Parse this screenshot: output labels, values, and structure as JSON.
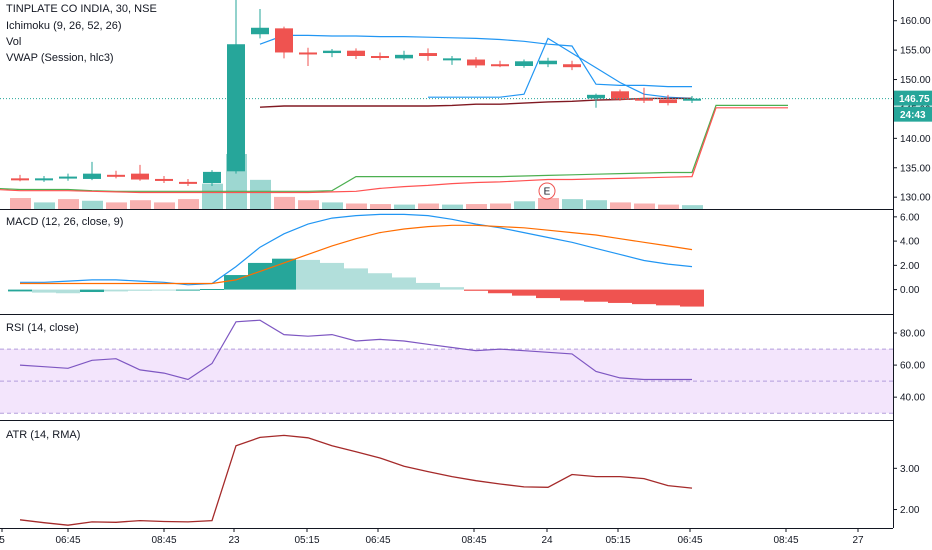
{
  "header": {
    "title": "TINPLATE CO INDIA, 30, NSE",
    "indicators": [
      "Ichimoku (9, 26, 52, 26)",
      "Vol",
      "VWAP (Session, hlc3)"
    ]
  },
  "panes": {
    "macd_label": "MACD (12, 26, close, 9)",
    "rsi_label": "RSI (14, close)",
    "atr_label": "ATR (14, RMA)"
  },
  "price_tag": {
    "last_price": "146.75",
    "countdown": "24:43",
    "color": "#26a69a"
  },
  "earnings_marker": "E",
  "colors": {
    "up": "#26a69a",
    "down": "#ef5350",
    "ichimoku_conversion": "#2196f3",
    "ichimoku_base": "#801922",
    "span_a": "#4caf50",
    "span_b": "#ff5252",
    "vwap": "#2196f3",
    "macd_line": "#2196f3",
    "signal_line": "#ff6d00",
    "rsi_line": "#7e57c2",
    "rsi_band": "#f3e5fc",
    "atr_line": "#a52a2a"
  },
  "chart_data": [
    {
      "type": "candlestick",
      "pane": "price",
      "ylim": [
        128.5,
        162.5
      ],
      "yticks": [
        "160.00",
        "155.00",
        "150.00",
        "145.00",
        "140.00",
        "135.00",
        "130.00"
      ],
      "ytick_values": [
        160,
        155,
        150,
        145,
        140,
        135,
        130
      ],
      "xticks": [
        "5",
        "06:45",
        "08:45",
        "23",
        "05:15",
        "06:45",
        "08:45",
        "24",
        "05:15",
        "06:45",
        "08:45",
        "27"
      ],
      "candles": [
        {
          "o": 133.2,
          "h": 133.8,
          "l": 132.7,
          "c": 133.0
        },
        {
          "o": 133.0,
          "h": 133.6,
          "l": 132.6,
          "c": 133.2
        },
        {
          "o": 133.2,
          "h": 134.0,
          "l": 132.8,
          "c": 133.5
        },
        {
          "o": 133.1,
          "h": 136.0,
          "l": 132.9,
          "c": 134.0
        },
        {
          "o": 133.8,
          "h": 134.5,
          "l": 133.2,
          "c": 133.6
        },
        {
          "o": 134.0,
          "h": 135.5,
          "l": 132.8,
          "c": 133.0
        },
        {
          "o": 133.1,
          "h": 133.6,
          "l": 132.4,
          "c": 132.8
        },
        {
          "o": 132.6,
          "h": 133.1,
          "l": 131.9,
          "c": 132.3
        },
        {
          "o": 132.4,
          "h": 134.6,
          "l": 131.9,
          "c": 134.3
        },
        {
          "o": 134.4,
          "h": 164.0,
          "l": 134.0,
          "c": 156.0
        },
        {
          "o": 157.7,
          "h": 162.0,
          "l": 157.0,
          "c": 158.8
        },
        {
          "o": 158.7,
          "h": 159.0,
          "l": 153.6,
          "c": 154.6
        },
        {
          "o": 154.6,
          "h": 155.4,
          "l": 152.3,
          "c": 154.3
        },
        {
          "o": 154.5,
          "h": 155.2,
          "l": 153.8,
          "c": 154.9
        },
        {
          "o": 154.9,
          "h": 155.3,
          "l": 153.5,
          "c": 154.0
        },
        {
          "o": 154.0,
          "h": 154.6,
          "l": 153.3,
          "c": 153.8
        },
        {
          "o": 153.6,
          "h": 154.9,
          "l": 153.3,
          "c": 154.2
        },
        {
          "o": 154.5,
          "h": 155.3,
          "l": 153.2,
          "c": 154.0
        },
        {
          "o": 153.5,
          "h": 154.0,
          "l": 152.5,
          "c": 153.6
        },
        {
          "o": 153.4,
          "h": 153.8,
          "l": 152.0,
          "c": 152.4
        },
        {
          "o": 152.6,
          "h": 153.2,
          "l": 152.1,
          "c": 152.3
        },
        {
          "o": 152.3,
          "h": 153.4,
          "l": 152.0,
          "c": 153.1
        },
        {
          "o": 152.6,
          "h": 153.7,
          "l": 152.1,
          "c": 153.2
        },
        {
          "o": 152.6,
          "h": 153.2,
          "l": 151.6,
          "c": 152.1
        },
        {
          "o": 146.8,
          "h": 147.6,
          "l": 145.2,
          "c": 147.4
        },
        {
          "o": 148.0,
          "h": 148.3,
          "l": 146.4,
          "c": 146.6
        },
        {
          "o": 146.8,
          "h": 148.6,
          "l": 146.0,
          "c": 146.4
        },
        {
          "o": 146.6,
          "h": 147.4,
          "l": 145.6,
          "c": 146.0
        },
        {
          "o": 146.4,
          "h": 147.2,
          "l": 146.0,
          "c": 146.75
        }
      ],
      "volume": [
        {
          "v": 0.2,
          "up": false
        },
        {
          "v": 0.12,
          "up": true
        },
        {
          "v": 0.18,
          "up": false
        },
        {
          "v": 0.15,
          "up": true
        },
        {
          "v": 0.12,
          "up": false
        },
        {
          "v": 0.16,
          "up": false
        },
        {
          "v": 0.12,
          "up": false
        },
        {
          "v": 0.18,
          "up": false
        },
        {
          "v": 0.46,
          "up": true
        },
        {
          "v": 1.0,
          "up": true
        },
        {
          "v": 0.53,
          "up": true
        },
        {
          "v": 0.22,
          "up": false
        },
        {
          "v": 0.16,
          "up": false
        },
        {
          "v": 0.12,
          "up": true
        },
        {
          "v": 0.1,
          "up": false
        },
        {
          "v": 0.09,
          "up": false
        },
        {
          "v": 0.08,
          "up": true
        },
        {
          "v": 0.1,
          "up": false
        },
        {
          "v": 0.08,
          "up": true
        },
        {
          "v": 0.09,
          "up": false
        },
        {
          "v": 0.1,
          "up": false
        },
        {
          "v": 0.14,
          "up": true
        },
        {
          "v": 0.2,
          "up": false
        },
        {
          "v": 0.18,
          "up": true
        },
        {
          "v": 0.16,
          "up": true
        },
        {
          "v": 0.12,
          "up": false
        },
        {
          "v": 0.1,
          "up": false
        },
        {
          "v": 0.08,
          "up": false
        },
        {
          "v": 0.07,
          "up": true
        }
      ],
      "series": [
        {
          "name": "VWAP",
          "values": [
            null,
            null,
            null,
            null,
            null,
            null,
            null,
            null,
            null,
            null,
            156,
            157.5,
            157.5,
            157.4,
            157.4,
            157.3,
            157.3,
            157.2,
            157.1,
            157.0,
            156.8,
            156.5,
            156.0,
            155.7,
            149.2,
            149.0,
            149.0,
            148.8,
            148.8
          ]
        },
        {
          "name": "Conversion Line",
          "values": [
            null,
            null,
            null,
            null,
            null,
            null,
            null,
            null,
            null,
            null,
            null,
            null,
            null,
            null,
            null,
            null,
            null,
            147.0,
            147.0,
            147.0,
            147.0,
            147.5,
            157.0,
            154.5,
            152.0,
            149.5,
            147.5,
            147.0,
            146.8
          ]
        },
        {
          "name": "Base Line",
          "values": [
            null,
            null,
            null,
            null,
            null,
            null,
            null,
            null,
            null,
            null,
            145.3,
            145.5,
            145.5,
            145.5,
            145.5,
            145.5,
            145.5,
            145.5,
            145.6,
            145.8,
            145.8,
            146.0,
            146.2,
            146.3,
            146.5,
            146.6,
            146.8,
            146.8,
            146.8
          ]
        },
        {
          "name": "Leading Span A",
          "values": [
            131.5,
            131.5,
            131.5,
            131.5,
            131.5,
            131.3,
            131.3,
            131.3,
            131.1,
            131.0,
            131.0,
            131.0,
            131.0,
            131.0,
            131.0,
            131.0,
            131.0,
            131.0,
            131.1,
            133.5,
            133.5,
            133.5,
            133.5,
            133.5,
            133.5,
            133.5,
            133.6,
            133.7,
            133.8,
            133.9,
            134.0,
            134.1,
            134.2,
            134.2,
            145.6,
            145.6,
            145.6,
            145.6
          ]
        },
        {
          "name": "Leading Span B",
          "values": [
            131.3,
            131.3,
            131.3,
            131.3,
            131.3,
            131.1,
            131.1,
            131.1,
            131.0,
            130.9,
            130.8,
            130.8,
            130.8,
            130.8,
            130.8,
            130.8,
            130.8,
            130.8,
            130.9,
            131.0,
            131.5,
            131.8,
            132.0,
            132.3,
            132.5,
            132.6,
            132.8,
            133.0,
            133.0,
            133.1,
            133.2,
            133.3,
            133.4,
            133.5,
            145.2,
            145.2,
            145.2,
            145.2
          ]
        }
      ]
    },
    {
      "type": "histogram",
      "pane": "MACD (12, 26, close, 9)",
      "ylim": [
        -1.6,
        6.4
      ],
      "yticks": [
        "6.00",
        "4.00",
        "2.00",
        "0.00"
      ],
      "ytick_values": [
        6,
        4,
        2,
        0
      ],
      "histogram": [
        -0.15,
        -0.25,
        -0.3,
        -0.2,
        -0.15,
        -0.1,
        -0.05,
        0.0,
        0.05,
        1.2,
        2.2,
        2.55,
        2.45,
        2.2,
        1.75,
        1.35,
        1.0,
        0.55,
        0.2,
        -0.1,
        -0.3,
        -0.5,
        -0.7,
        -0.9,
        -1.0,
        -1.1,
        -1.2,
        -1.3,
        -1.4
      ],
      "histogram_colors": [
        "#26a69a",
        "#b2dfdb",
        "#b2dfdb",
        "#26a69a",
        "#b2dfdb",
        "#b2dfdb",
        "#b2dfdb",
        "#26a69a",
        "#26a69a",
        "#26a69a",
        "#26a69a",
        "#26a69a",
        "#b2dfdb",
        "#b2dfdb",
        "#b2dfdb",
        "#b2dfdb",
        "#b2dfdb",
        "#b2dfdb",
        "#b2dfdb",
        "#ef5350",
        "#ef5350",
        "#ef5350",
        "#ef5350",
        "#ef5350",
        "#ef5350",
        "#ef5350",
        "#ef5350",
        "#ef5350",
        "#ef5350"
      ],
      "series": [
        {
          "name": "MACD",
          "values": [
            0.6,
            0.6,
            0.7,
            0.8,
            0.8,
            0.7,
            0.6,
            0.4,
            0.5,
            1.9,
            3.5,
            4.6,
            5.4,
            5.9,
            6.1,
            6.2,
            6.2,
            6.1,
            5.8,
            5.4,
            5.1,
            4.7,
            4.3,
            3.9,
            3.4,
            2.9,
            2.4,
            2.1,
            1.9
          ]
        },
        {
          "name": "Signal",
          "values": [
            0.5,
            0.5,
            0.5,
            0.5,
            0.5,
            0.5,
            0.5,
            0.5,
            0.5,
            0.8,
            1.5,
            2.2,
            2.9,
            3.6,
            4.2,
            4.7,
            5.0,
            5.2,
            5.3,
            5.3,
            5.2,
            5.1,
            4.9,
            4.7,
            4.5,
            4.2,
            3.9,
            3.6,
            3.3
          ]
        }
      ]
    },
    {
      "type": "line",
      "pane": "RSI (14, close)",
      "ylim": [
        27,
        90
      ],
      "yticks": [
        "80.00",
        "60.00",
        "40.00"
      ],
      "ytick_values": [
        80,
        60,
        40
      ],
      "bands": [
        70,
        50,
        30
      ],
      "series": [
        {
          "name": "RSI",
          "values": [
            60,
            59,
            58,
            63,
            64,
            57,
            55,
            51,
            61,
            87,
            88,
            79,
            78,
            79,
            75,
            76,
            75,
            73,
            71,
            69,
            70,
            69,
            68,
            67,
            56,
            52,
            51,
            51,
            51
          ]
        }
      ]
    },
    {
      "type": "line",
      "pane": "ATR (14, RMA)",
      "ylim": [
        1.6,
        4.1
      ],
      "yticks": [
        "3.00",
        "2.00"
      ],
      "ytick_values": [
        3,
        2
      ],
      "series": [
        {
          "name": "ATR",
          "values": [
            1.75,
            1.68,
            1.62,
            1.7,
            1.69,
            1.73,
            1.71,
            1.7,
            1.73,
            3.55,
            3.75,
            3.8,
            3.74,
            3.55,
            3.4,
            3.25,
            3.05,
            2.92,
            2.8,
            2.7,
            2.62,
            2.55,
            2.54,
            2.85,
            2.8,
            2.8,
            2.75,
            2.58,
            2.52
          ]
        }
      ]
    }
  ]
}
